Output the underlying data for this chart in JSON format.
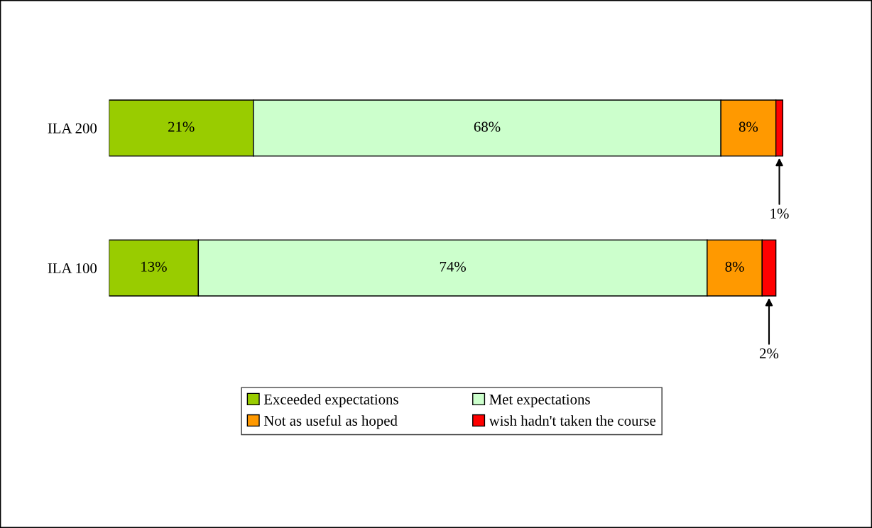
{
  "chart_data": {
    "type": "bar",
    "orientation": "horizontal",
    "stacked": true,
    "categories": [
      "ILA 200",
      "ILA 100"
    ],
    "series": [
      {
        "name": "Exceeded expectations",
        "color": "#99cc00",
        "values": [
          21,
          13
        ],
        "value_labels": [
          "21%",
          "13%"
        ]
      },
      {
        "name": "Met expectations",
        "color": "#ccffcc",
        "values": [
          68,
          74
        ],
        "value_labels": [
          "68%",
          "74%"
        ]
      },
      {
        "name": "Not as useful as hoped",
        "color": "#ff9900",
        "values": [
          8,
          8
        ],
        "value_labels": [
          "8%",
          "8%"
        ]
      },
      {
        "name": "wish hadn't taken the course",
        "color": "#ff0000",
        "values": [
          1,
          2
        ],
        "value_labels": [
          "1%",
          "2%"
        ]
      }
    ],
    "legend": "bottom",
    "grid": false,
    "tick_labels": "y"
  }
}
